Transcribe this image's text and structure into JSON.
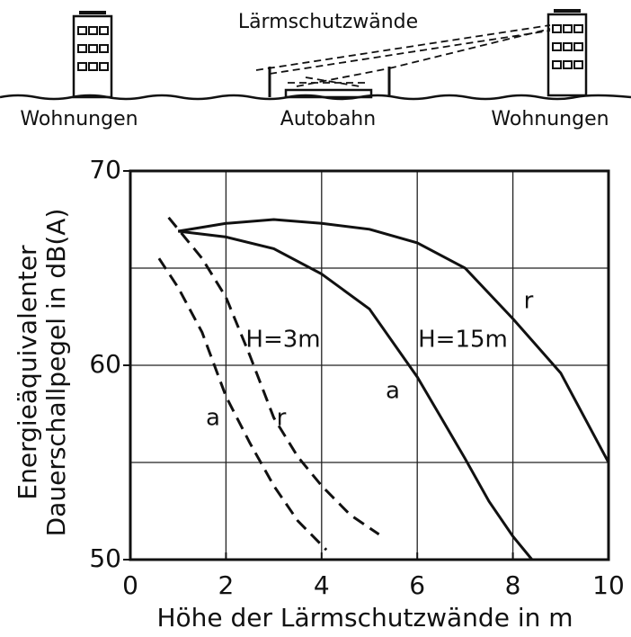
{
  "diagram": {
    "title": "Lärmschutzwände",
    "labels": [
      "Wohnungen",
      "Autobahn",
      "Wohnungen"
    ]
  },
  "chart_data": {
    "type": "line",
    "xlabel": "Höhe der Lärmschutzwände in m",
    "ylabel": [
      "Energieäquivalenter",
      "Dauerschallpegel  in dB(A)"
    ],
    "xlim": [
      0,
      10
    ],
    "ylim": [
      50,
      70
    ],
    "xticks": [
      0,
      2,
      4,
      6,
      8,
      10
    ],
    "yticks": [
      50,
      60,
      70
    ],
    "xgrid": [
      2,
      4,
      6,
      8
    ],
    "ygrid": [
      55,
      60,
      65
    ],
    "groups": [
      "H=3m",
      "H=15m"
    ],
    "series": [
      {
        "name": "a",
        "group": 0,
        "dashed": true,
        "color": "#111111",
        "x": [
          0.6,
          1,
          1.5,
          2,
          2.5,
          3,
          3.5,
          4.1
        ],
        "values": [
          65.5,
          64,
          61.7,
          58.4,
          56,
          53.8,
          52,
          50.5
        ]
      },
      {
        "name": "r",
        "group": 0,
        "dashed": true,
        "color": "#111111",
        "x": [
          0.8,
          1.5,
          2,
          2.5,
          3,
          3.5,
          4,
          4.6,
          5.2
        ],
        "values": [
          67.6,
          65.5,
          63.5,
          60.5,
          57.3,
          55.3,
          53.8,
          52.3,
          51.3
        ]
      },
      {
        "name": "a",
        "group": 1,
        "dashed": false,
        "color": "#111111",
        "x": [
          1,
          2,
          3,
          4,
          5,
          6,
          6.5,
          7,
          7.5,
          8,
          8.4
        ],
        "values": [
          66.9,
          66.6,
          66,
          64.7,
          62.9,
          59.4,
          57.3,
          55.2,
          53,
          51.2,
          50
        ]
      },
      {
        "name": "r",
        "group": 1,
        "dashed": false,
        "color": "#111111",
        "x": [
          1,
          2,
          3,
          4,
          5,
          6,
          7,
          8,
          9,
          10
        ],
        "values": [
          66.9,
          67.3,
          67.5,
          67.3,
          67,
          66.3,
          65,
          62.4,
          59.6,
          55
        ]
      }
    ]
  }
}
